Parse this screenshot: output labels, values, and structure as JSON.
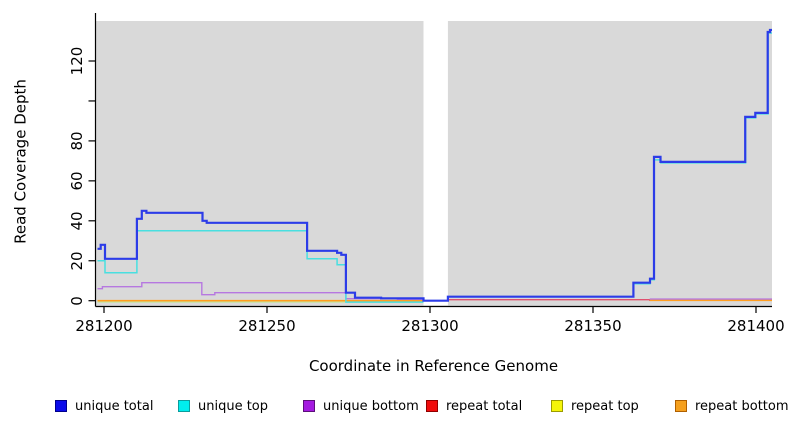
{
  "chart_data": {
    "type": "line",
    "subtype": "step-coverage",
    "title": "",
    "xlabel": "Coordinate in Reference Genome",
    "ylabel": "Read Coverage Depth",
    "xlim": [
      281197,
      281405
    ],
    "ylim": [
      0,
      136
    ],
    "x_ticks": [
      281200,
      281250,
      281300,
      281350,
      281400
    ],
    "y_ticks": [
      0,
      20,
      40,
      60,
      80,
      100,
      120
    ],
    "y_tick_labels": [
      "0",
      "20",
      "40",
      "60",
      "80",
      "",
      "120"
    ],
    "panel_background": "#d9d9d9",
    "figure_background": "#ffffff",
    "no_data_region": {
      "start": 281298,
      "end": 281305.5
    },
    "legend_position": "bottom",
    "grid": false,
    "series": [
      {
        "label": "unique total",
        "line_color": "#2c3ce8",
        "swatch_fill": "#0b0bea",
        "swatch_border": "#00008b",
        "line_width": 2.2,
        "segments": [
          [
            [
              281198,
              26
            ],
            [
              281199,
              28
            ],
            [
              281200.3,
              21
            ],
            [
              281210.1,
              41
            ],
            [
              281211.6,
              45
            ],
            [
              281213,
              44
            ],
            [
              281230.2,
              40
            ],
            [
              281231.5,
              39
            ],
            [
              281262.3,
              25
            ],
            [
              281271.5,
              24
            ],
            [
              281272.8,
              23
            ],
            [
              281274.2,
              4
            ],
            [
              281277,
              1.5
            ],
            [
              281285,
              1.2
            ],
            [
              281298,
              0
            ],
            [
              281305.5,
              2
            ],
            [
              281362.4,
              9
            ],
            [
              281367.5,
              11
            ],
            [
              281368.7,
              72
            ],
            [
              281370.7,
              69.5
            ],
            [
              281396.7,
              92
            ],
            [
              281399.8,
              94
            ],
            [
              281403.6,
              134.5
            ],
            [
              281404.3,
              135.5
            ],
            [
              281404.9,
              135.5
            ]
          ]
        ]
      },
      {
        "label": "unique top",
        "line_color": "#49dfe0",
        "swatch_fill": "#00eded",
        "swatch_border": "#0b9c9c",
        "line_width": 1.5,
        "segments": [
          [
            [
              281198,
              20
            ],
            [
              281200.3,
              14
            ],
            [
              281210.1,
              35
            ],
            [
              281262.3,
              21
            ],
            [
              281271.5,
              18
            ],
            [
              281274.2,
              -0.7
            ],
            [
              281298,
              -0.7
            ]
          ],
          [
            [
              281305.5,
              2
            ],
            [
              281362.4,
              8.5
            ],
            [
              281367.5,
              10.5
            ],
            [
              281368.8,
              70.5
            ],
            [
              281370.8,
              69
            ],
            [
              281396.8,
              91.5
            ],
            [
              281399.9,
              93.5
            ],
            [
              281403.7,
              134
            ],
            [
              281404.9,
              134
            ]
          ]
        ]
      },
      {
        "label": "unique bottom",
        "line_color": "#b678e0",
        "swatch_fill": "#a41ae0",
        "swatch_border": "#5c0f7a",
        "line_width": 1.4,
        "segments": [
          [
            [
              281198,
              6
            ],
            [
              281199.5,
              7
            ],
            [
              281211.6,
              9
            ],
            [
              281230,
              3
            ],
            [
              281234,
              4
            ],
            [
              281274.2,
              1
            ],
            [
              281290,
              0.7
            ],
            [
              281298,
              0
            ]
          ],
          [
            [
              281367.4,
              0.8
            ],
            [
              281404.9,
              0.8
            ]
          ]
        ]
      },
      {
        "label": "repeat total",
        "line_color": "#e0506e",
        "swatch_fill": "#f00c0c",
        "swatch_border": "#8f0000",
        "line_width": 1.4,
        "segments": [
          [
            [
              281198,
              0
            ],
            [
              281298,
              0
            ]
          ],
          [
            [
              281305.5,
              0.5
            ],
            [
              281367.4,
              0.25
            ],
            [
              281404.9,
              0.25
            ]
          ]
        ]
      },
      {
        "label": "repeat top",
        "line_color": "#c8e6a0",
        "swatch_fill": "#f5f50a",
        "swatch_border": "#9c9c00",
        "line_width": 1.3,
        "segments": [
          [
            [
              281198,
              -0.7
            ],
            [
              281298,
              -0.7
            ]
          ]
        ]
      },
      {
        "label": "repeat bottom",
        "line_color": "#ff9e20",
        "swatch_fill": "#f5a01e",
        "swatch_border": "#b06000",
        "line_width": 1.6,
        "segments": [
          [
            [
              281198,
              0
            ],
            [
              281298,
              0
            ]
          ],
          [
            [
              281367.4,
              0.2
            ],
            [
              281404.9,
              0.2
            ]
          ]
        ]
      }
    ]
  }
}
